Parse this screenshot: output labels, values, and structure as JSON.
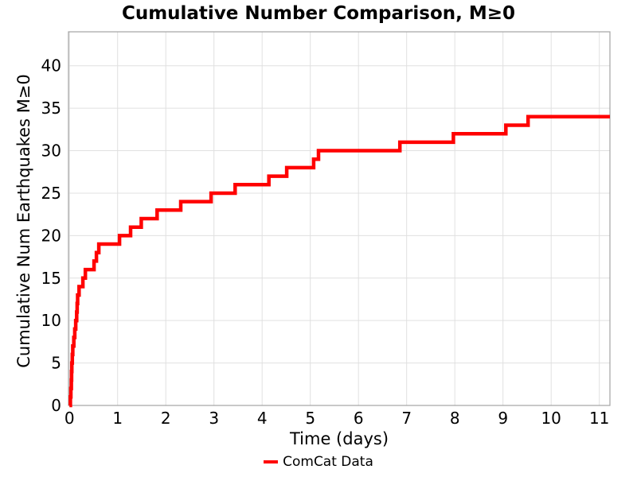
{
  "title": "Cumulative Number Comparison, M≥0",
  "chart_data": {
    "type": "line",
    "subtype": "step-post",
    "title": "Cumulative Number Comparison, M≥0",
    "xlabel": "Time (days)",
    "ylabel": "Cumulative Num Earthquakes M≥0",
    "xlim": [
      -0.02,
      11.22
    ],
    "ylim": [
      0,
      44
    ],
    "xticks": [
      0,
      1,
      2,
      3,
      4,
      5,
      6,
      7,
      8,
      9,
      10,
      11
    ],
    "yticks": [
      0,
      5,
      10,
      15,
      20,
      25,
      30,
      35,
      40
    ],
    "grid": true,
    "legend_position": "bottom-center",
    "series": [
      {
        "name": "ComCat Data",
        "color": "#ff0000",
        "line_width": 4.5,
        "description": "cumulative earthquake count step curve; pairs of [time_days, cumulative_count]",
        "step_events": [
          [
            0.02,
            1
          ],
          [
            0.03,
            2
          ],
          [
            0.04,
            3
          ],
          [
            0.045,
            4
          ],
          [
            0.05,
            5
          ],
          [
            0.06,
            6
          ],
          [
            0.07,
            7
          ],
          [
            0.09,
            8
          ],
          [
            0.11,
            9
          ],
          [
            0.13,
            10
          ],
          [
            0.15,
            11
          ],
          [
            0.16,
            12
          ],
          [
            0.17,
            13
          ],
          [
            0.2,
            14
          ],
          [
            0.28,
            15
          ],
          [
            0.33,
            16
          ],
          [
            0.51,
            17
          ],
          [
            0.56,
            18
          ],
          [
            0.61,
            19
          ],
          [
            1.04,
            20
          ],
          [
            1.27,
            21
          ],
          [
            1.49,
            22
          ],
          [
            1.82,
            23
          ],
          [
            2.31,
            24
          ],
          [
            2.94,
            25
          ],
          [
            3.44,
            26
          ],
          [
            4.14,
            27
          ],
          [
            4.51,
            28
          ],
          [
            5.07,
            29
          ],
          [
            5.17,
            30
          ],
          [
            6.86,
            31
          ],
          [
            7.97,
            32
          ],
          [
            9.06,
            33
          ],
          [
            9.52,
            34
          ]
        ],
        "end_x": 11.22
      }
    ],
    "colors": {
      "background": "#ffffff",
      "grid": "#e0e0e0",
      "spine": "#a3a3a3",
      "text": "#000000"
    }
  }
}
